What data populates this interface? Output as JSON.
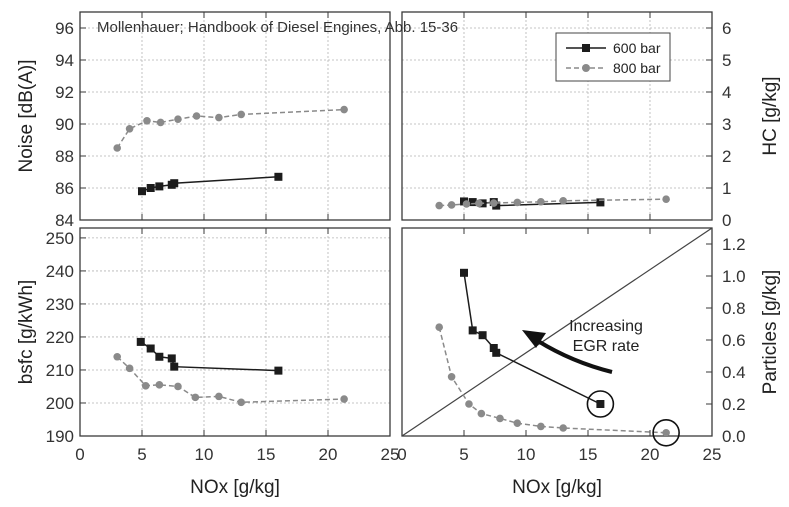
{
  "title": "Mollenhauer; Handbook of Diesel Engines, Abb. 15-36",
  "legend": {
    "position": "top-right",
    "entries": [
      "600 bar",
      "800 bar"
    ]
  },
  "colors": {
    "series_600": "#1c1c1c",
    "series_800": "#8a8a8a",
    "axis": "#3a3a3a",
    "grid": "#b4b4b4"
  },
  "chart_data": [
    {
      "type": "line",
      "panel": "top-left",
      "xlabel": "",
      "ylabel": "Noise [dB(A)]",
      "xlim": [
        0,
        25
      ],
      "ylim": [
        84,
        97
      ],
      "xticks": [],
      "yticks": [
        "84",
        "86",
        "88",
        "90",
        "92",
        "94",
        "96"
      ],
      "grid": true,
      "series": [
        {
          "name": "600 bar",
          "style": "solid",
          "marker": "square",
          "x": [
            5.0,
            5.7,
            6.4,
            7.4,
            7.6,
            16.0
          ],
          "y": [
            85.8,
            86.0,
            86.1,
            86.2,
            86.3,
            86.7
          ]
        },
        {
          "name": "800 bar",
          "style": "dashed",
          "marker": "circle",
          "x": [
            3.0,
            4.0,
            5.4,
            6.5,
            7.9,
            9.4,
            11.2,
            13.0,
            21.3
          ],
          "y": [
            88.5,
            89.7,
            90.2,
            90.1,
            90.3,
            90.5,
            90.4,
            90.6,
            90.9
          ]
        }
      ]
    },
    {
      "type": "line",
      "panel": "top-right",
      "xlabel": "",
      "ylabel": "HC [g/kg]",
      "xlim": [
        0,
        25
      ],
      "ylim": [
        0,
        6.5
      ],
      "xticks": [],
      "yticks": [
        "0",
        "1",
        "2",
        "3",
        "4",
        "5",
        "6"
      ],
      "grid": true,
      "series": [
        {
          "name": "600 bar",
          "style": "solid",
          "marker": "square",
          "x": [
            5.0,
            5.7,
            6.5,
            7.4,
            7.6,
            16.0
          ],
          "y": [
            0.58,
            0.56,
            0.52,
            0.56,
            0.45,
            0.55
          ]
        },
        {
          "name": "800 bar",
          "style": "dashed",
          "marker": "circle",
          "x": [
            3.0,
            4.0,
            5.2,
            6.2,
            7.4,
            9.3,
            11.2,
            13.0,
            21.3
          ],
          "y": [
            0.45,
            0.47,
            0.5,
            0.52,
            0.53,
            0.55,
            0.57,
            0.6,
            0.65
          ]
        }
      ]
    },
    {
      "type": "line",
      "panel": "bottom-left",
      "xlabel": "NOx [g/kg]",
      "ylabel": "bsfc [g/kWh]",
      "xlim": [
        0,
        25
      ],
      "ylim": [
        190,
        253
      ],
      "xticks": [
        "0",
        "5",
        "10",
        "15",
        "20",
        "25"
      ],
      "yticks": [
        "190",
        "200",
        "210",
        "220",
        "230",
        "240",
        "250"
      ],
      "grid": true,
      "series": [
        {
          "name": "600 bar",
          "style": "solid",
          "marker": "square",
          "x": [
            4.9,
            5.7,
            6.4,
            7.4,
            7.6,
            16.0
          ],
          "y": [
            218.5,
            216.5,
            214.0,
            213.5,
            211.0,
            209.8
          ]
        },
        {
          "name": "800 bar",
          "style": "dashed",
          "marker": "circle",
          "x": [
            3.0,
            4.0,
            5.3,
            6.4,
            7.9,
            9.3,
            11.2,
            13.0,
            21.3
          ],
          "y": [
            214.0,
            210.5,
            205.2,
            205.5,
            205.0,
            201.7,
            202.0,
            200.2,
            201.2
          ]
        }
      ]
    },
    {
      "type": "line",
      "panel": "bottom-right",
      "xlabel": "NOx [g/kg]",
      "ylabel": "Particles [g/kg]",
      "xlim": [
        0,
        25
      ],
      "ylim": [
        0,
        1.3
      ],
      "xticks": [
        "0",
        "5",
        "10",
        "15",
        "20",
        "25"
      ],
      "yticks": [
        "0.0",
        "0.2",
        "0.4",
        "0.6",
        "0.8",
        "1.0",
        "1.2"
      ],
      "grid": false,
      "series": [
        {
          "name": "600 bar",
          "style": "solid",
          "marker": "square",
          "x": [
            5.0,
            5.7,
            6.5,
            7.4,
            7.6,
            16.0
          ],
          "y": [
            1.02,
            0.66,
            0.63,
            0.55,
            0.52,
            0.2
          ]
        },
        {
          "name": "800 bar",
          "style": "dashed",
          "marker": "circle",
          "x": [
            3.0,
            4.0,
            5.4,
            6.4,
            7.9,
            9.3,
            11.2,
            13.0,
            21.3
          ],
          "y": [
            0.68,
            0.37,
            0.2,
            0.14,
            0.11,
            0.08,
            0.06,
            0.05,
            0.02
          ]
        }
      ],
      "annotation": {
        "text_line1": "Increasing",
        "text_line2": "EGR rate"
      },
      "reference_line": {
        "x": [
          0,
          25
        ],
        "y": [
          0,
          1.3
        ]
      },
      "circled_points": [
        {
          "x": 16.0,
          "y": 0.2
        },
        {
          "x": 21.3,
          "y": 0.02
        }
      ]
    }
  ]
}
